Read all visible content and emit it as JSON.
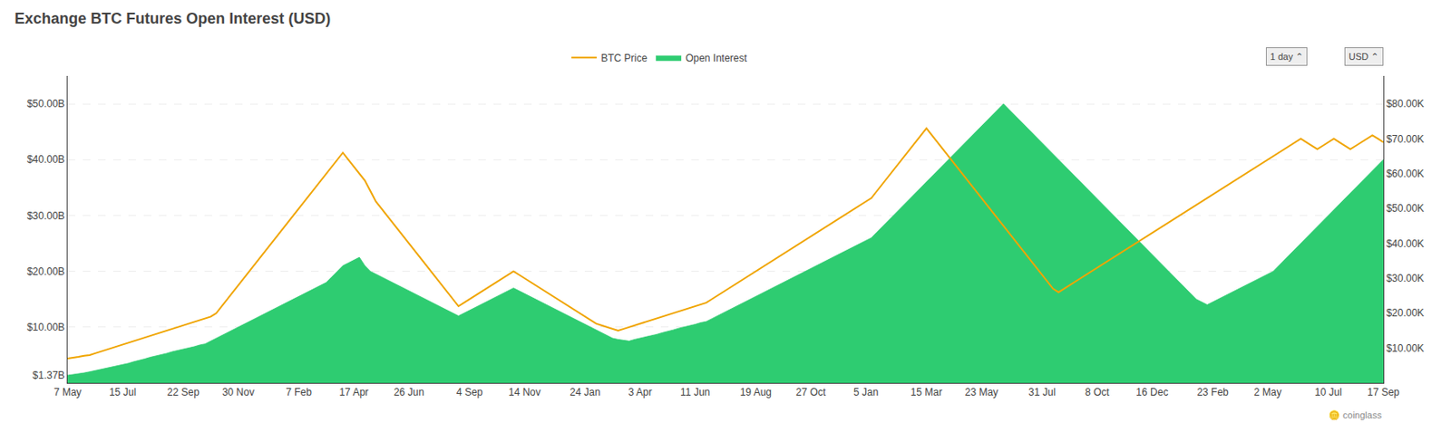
{
  "chart_data": {
    "type": "line",
    "title": "Exchange BTC Futures Open Interest (USD)",
    "categories": [
      "7 May",
      null,
      null,
      null,
      null,
      null,
      null,
      null,
      null,
      null,
      "15 Jul",
      null,
      null,
      null,
      null,
      null,
      null,
      null,
      null,
      null,
      null,
      "22 Sep",
      null,
      null,
      null,
      null,
      null,
      null,
      null,
      null,
      null,
      "30 Nov",
      null,
      null,
      null,
      null,
      null,
      null,
      null,
      null,
      null,
      null,
      "7 Feb",
      null,
      null,
      null,
      null,
      null,
      null,
      null,
      null,
      null,
      "17 Apr",
      null,
      null,
      null,
      null,
      null,
      null,
      null,
      null,
      null,
      "26 Jun",
      null,
      null,
      null,
      null,
      null,
      null,
      null,
      null,
      null,
      null,
      "4 Sep",
      null,
      null,
      null,
      null,
      null,
      null,
      null,
      null,
      null,
      "14 Nov",
      null,
      null,
      null,
      null,
      null,
      null,
      null,
      null,
      null,
      null,
      "24 Jan",
      null,
      null,
      null,
      null,
      null,
      null,
      null,
      null,
      null,
      "3 Apr",
      null,
      null,
      null,
      null,
      null,
      null,
      null,
      null,
      null,
      "11 Jun",
      null,
      null,
      null,
      null,
      null,
      null,
      null,
      null,
      null,
      null,
      "19 Aug",
      null,
      null,
      null,
      null,
      null,
      null,
      null,
      null,
      null,
      "27 Oct",
      null,
      null,
      null,
      null,
      null,
      null,
      null,
      null,
      null,
      "5 Jan",
      null,
      null,
      null,
      null,
      null,
      null,
      null,
      null,
      null,
      null,
      "15 Mar",
      null,
      null,
      null,
      null,
      null,
      null,
      null,
      null,
      null,
      "23 May",
      null,
      null,
      null,
      null,
      null,
      null,
      null,
      null,
      null,
      null,
      "31 Jul",
      null,
      null,
      null,
      null,
      null,
      null,
      null,
      null,
      null,
      "8 Oct",
      null,
      null,
      null,
      null,
      null,
      null,
      null,
      null,
      null,
      "16 Dec",
      null,
      null,
      null,
      null,
      null,
      null,
      null,
      null,
      null,
      null,
      "23 Feb",
      null,
      null,
      null,
      null,
      null,
      null,
      null,
      null,
      null,
      "2 May",
      null,
      null,
      null,
      null,
      null,
      null,
      null,
      null,
      null,
      null,
      "10 Jul",
      null,
      null,
      null,
      null,
      null,
      null,
      null,
      null,
      null,
      "17 Sep"
    ],
    "series": [
      {
        "name": "BTC Price",
        "type": "line",
        "color": "#f0a500",
        "axis": "y2",
        "values": [
          7000,
          7200,
          7500,
          7800,
          8000,
          8500,
          9000,
          9500,
          10000,
          10500,
          11000,
          11500,
          12000,
          12500,
          13000,
          13500,
          14000,
          14500,
          15000,
          15500,
          16000,
          16500,
          17000,
          17500,
          18000,
          18500,
          19000,
          20000,
          22000,
          24000,
          26000,
          28000,
          30000,
          32000,
          34000,
          36000,
          38000,
          40000,
          42000,
          44000,
          46000,
          48000,
          50000,
          52000,
          54000,
          56000,
          58000,
          60000,
          62000,
          64000,
          66000,
          64000,
          62000,
          60000,
          58000,
          55000,
          52000,
          50000,
          48000,
          46000,
          44000,
          42000,
          40000,
          38000,
          36000,
          34000,
          32000,
          30000,
          28000,
          26000,
          24000,
          22000,
          23000,
          24000,
          25000,
          26000,
          27000,
          28000,
          29000,
          30000,
          31000,
          32000,
          31000,
          30000,
          29000,
          28000,
          27000,
          26000,
          25000,
          24000,
          23000,
          22000,
          21000,
          20000,
          19000,
          18000,
          17000,
          16500,
          16000,
          15500,
          15000,
          15500,
          16000,
          16500,
          17000,
          17500,
          18000,
          18500,
          19000,
          19500,
          20000,
          20500,
          21000,
          21500,
          22000,
          22500,
          23000,
          24000,
          25000,
          26000,
          27000,
          28000,
          29000,
          30000,
          31000,
          32000,
          33000,
          34000,
          35000,
          36000,
          37000,
          38000,
          39000,
          40000,
          41000,
          42000,
          43000,
          44000,
          45000,
          46000,
          47000,
          48000,
          49000,
          50000,
          51000,
          52000,
          53000,
          55000,
          57000,
          59000,
          61000,
          63000,
          65000,
          67000,
          69000,
          71000,
          73000,
          71000,
          69000,
          67000,
          65000,
          63000,
          61000,
          59000,
          57000,
          55000,
          53000,
          51000,
          49000,
          47000,
          45000,
          43000,
          41000,
          39000,
          37000,
          35000,
          33000,
          31000,
          29000,
          27000,
          26000,
          27000,
          28000,
          29000,
          30000,
          31000,
          32000,
          33000,
          34000,
          35000,
          36000,
          37000,
          38000,
          39000,
          40000,
          41000,
          42000,
          43000,
          44000,
          45000,
          46000,
          47000,
          48000,
          49000,
          50000,
          51000,
          52000,
          53000,
          54000,
          55000,
          56000,
          57000,
          58000,
          59000,
          60000,
          61000,
          62000,
          63000,
          64000,
          65000,
          66000,
          67000,
          68000,
          69000,
          70000,
          69000,
          68000,
          67000,
          68000,
          69000,
          70000,
          69000,
          68000,
          67000,
          68000,
          69000,
          70000,
          71000,
          70000,
          69000
        ]
      },
      {
        "name": "Open Interest",
        "type": "area",
        "color": "#2ecc71",
        "values": [
          1.37,
          1.5,
          1.6,
          1.8,
          2.0,
          2.2,
          2.4,
          2.6,
          2.8,
          3.0,
          3.2,
          3.5,
          3.8,
          4.0,
          4.3,
          4.6,
          4.8,
          5.0,
          5.3,
          5.6,
          5.8,
          6.0,
          6.2,
          6.5,
          6.8,
          7.0,
          7.5,
          8.0,
          8.5,
          9.0,
          9.5,
          10.0,
          10.5,
          11.0,
          11.5,
          12.0,
          12.5,
          13.0,
          13.5,
          14.0,
          14.5,
          15.0,
          15.5,
          16.0,
          16.5,
          17.0,
          17.5,
          18.0,
          19.0,
          20.0,
          21.0,
          21.5,
          22.0,
          22.5,
          21.0,
          20.0,
          19.5,
          19.0,
          18.5,
          18.0,
          17.5,
          17.0,
          16.5,
          16.0,
          15.5,
          15.0,
          14.5,
          14.0,
          13.5,
          13.0,
          12.5,
          12.0,
          12.5,
          13.0,
          13.5,
          14.0,
          14.5,
          15.0,
          15.5,
          16.0,
          16.5,
          17.0,
          16.5,
          16.0,
          15.5,
          15.0,
          14.5,
          14.0,
          13.5,
          13.0,
          12.5,
          12.0,
          11.5,
          11.0,
          10.5,
          10.0,
          9.5,
          9.0,
          8.5,
          8.0,
          7.8,
          7.6,
          7.5,
          7.8,
          8.0,
          8.3,
          8.5,
          8.7,
          9.0,
          9.2,
          9.5,
          9.8,
          10.0,
          10.3,
          10.5,
          10.8,
          11.0,
          11.5,
          12.0,
          12.5,
          13.0,
          13.5,
          14.0,
          14.5,
          15.0,
          15.5,
          16.0,
          16.5,
          17.0,
          17.5,
          18.0,
          18.5,
          19.0,
          19.5,
          20.0,
          20.5,
          21.0,
          21.5,
          22.0,
          22.5,
          23.0,
          23.5,
          24.0,
          24.5,
          25.0,
          25.5,
          26.0,
          27.0,
          28.0,
          29.0,
          30.0,
          31.0,
          32.0,
          33.0,
          34.0,
          35.0,
          36.0,
          37.0,
          38.0,
          39.0,
          40.0,
          41.0,
          42.0,
          43.0,
          44.0,
          45.0,
          46.0,
          47.0,
          48.0,
          49.0,
          50.0,
          49.0,
          48.0,
          47.0,
          46.0,
          45.0,
          44.0,
          43.0,
          42.0,
          41.0,
          40.0,
          39.0,
          38.0,
          37.0,
          36.0,
          35.0,
          34.0,
          33.0,
          32.0,
          31.0,
          30.0,
          29.0,
          28.0,
          27.0,
          26.0,
          25.0,
          24.0,
          23.0,
          22.0,
          21.0,
          20.0,
          19.0,
          18.0,
          17.0,
          16.0,
          15.0,
          14.5,
          14.0,
          14.5,
          15.0,
          15.5,
          16.0,
          16.5,
          17.0,
          17.5,
          18.0,
          18.5,
          19.0,
          19.5,
          20.0,
          21.0,
          22.0,
          23.0,
          24.0,
          25.0,
          26.0,
          27.0,
          28.0,
          29.0,
          30.0,
          31.0,
          32.0,
          33.0,
          34.0,
          35.0,
          36.0,
          37.0,
          38.0,
          39.0,
          40.0
        ]
      }
    ],
    "ylim": [
      0,
      55
    ],
    "yticks": [
      {
        "value": 1.37,
        "label": "$1.37B"
      },
      {
        "value": 10,
        "label": "$10.00B"
      },
      {
        "value": 20,
        "label": "$20.00B"
      },
      {
        "value": 30,
        "label": "$30.00B"
      },
      {
        "value": 40,
        "label": "$40.00B"
      },
      {
        "value": 50,
        "label": "$50.00B"
      }
    ],
    "y2lim": [
      0,
      88000
    ],
    "y2ticks": [
      {
        "value": 10000,
        "label": "$10.00K"
      },
      {
        "value": 20000,
        "label": "$20.00K"
      },
      {
        "value": 30000,
        "label": "$30.00K"
      },
      {
        "value": 40000,
        "label": "$40.00K"
      },
      {
        "value": 50000,
        "label": "$50.00K"
      },
      {
        "value": 60000,
        "label": "$60.00K"
      },
      {
        "value": 70000,
        "label": "$70.00K"
      },
      {
        "value": 80000,
        "label": "$80.00K"
      }
    ],
    "grid": true,
    "legend": "top",
    "annotations": [
      "🪙 coinglass",
      "1 day ⌃",
      "USD ⌃"
    ]
  }
}
